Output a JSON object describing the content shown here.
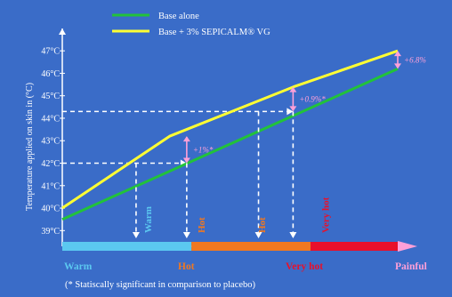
{
  "chart_data": {
    "type": "line",
    "ylabel": "Temperature applied on skin in (°C)",
    "ylim": [
      38.3,
      47.6
    ],
    "yticks": [
      39,
      40,
      41,
      42,
      43,
      44,
      45,
      46,
      47
    ],
    "ytick_labels": [
      "39°C",
      "40°C",
      "41°C",
      "42°C",
      "43°C",
      "44°C",
      "45°C",
      "46°C",
      "47°C"
    ],
    "xlim": [
      0,
      10
    ],
    "legend_position": "top",
    "grid": false,
    "series": [
      {
        "name": "Base alone",
        "color": "#22c23a",
        "x": [
          0,
          10
        ],
        "y": [
          39.5,
          46.2
        ]
      },
      {
        "name": "Base + 3% SEPICALM® VG",
        "color": "#ffff33",
        "x": [
          0,
          3.2,
          6.9,
          10
        ],
        "y": [
          40.0,
          43.2,
          45.4,
          47.0
        ]
      }
    ],
    "reference_lines": [
      {
        "y": 42,
        "x_from": 0,
        "x_to": 3.71
      },
      {
        "y": 44.3,
        "x_from": 0,
        "x_to": 6.88
      }
    ],
    "significance_markers": [
      {
        "x": 3.71,
        "y_from": 42.0,
        "y_to": 43.2,
        "label": "+1%*"
      },
      {
        "x": 6.88,
        "y_from": 44.3,
        "y_to": 45.4,
        "label": "+0.9%*"
      },
      {
        "x": 10,
        "y_from": 46.2,
        "y_to": 47.0,
        "label": "+6.8%"
      }
    ],
    "vertical_drops": [
      {
        "x": 2.2,
        "y_from": 42.0
      },
      {
        "x": 3.71,
        "y_from": 42.0
      },
      {
        "x": 5.85,
        "y_from": 44.3
      },
      {
        "x": 6.88,
        "y_from": 44.3
      }
    ],
    "rotated_labels": [
      {
        "text": "Warm",
        "x": 2.65,
        "color": "#5bc8f0"
      },
      {
        "text": "Hot",
        "x": 4.25,
        "color": "#f07820"
      },
      {
        "text": "Hot",
        "x": 6.05,
        "color": "#f07820"
      },
      {
        "text": "Very hot",
        "x": 7.95,
        "color": "#e8102a"
      }
    ],
    "zones": [
      {
        "label": "Warm",
        "color": "#5bc8f0",
        "label_color": "#5bc8f0",
        "x_from": 0,
        "x_to": 3.85
      },
      {
        "label": "Hot",
        "color": "#f07820",
        "label_color": "#f07820",
        "x_from": 3.85,
        "x_to": 7.4
      },
      {
        "label": "Very hot",
        "color": "#e8102a",
        "label_color": "#e8102a",
        "x_from": 7.4,
        "x_to": 10
      },
      {
        "label": "Painful",
        "color": "#ffa0d8",
        "label_color": "#ffa0d8"
      }
    ],
    "colors": {
      "background": "#3a6cc8",
      "axis": "#ffffff",
      "dashed": "#ffffff",
      "marker": "#ffa0d8",
      "footnote": "#ffffff"
    }
  },
  "footnote": "(* Statiscally significant in comparison to placebo)"
}
